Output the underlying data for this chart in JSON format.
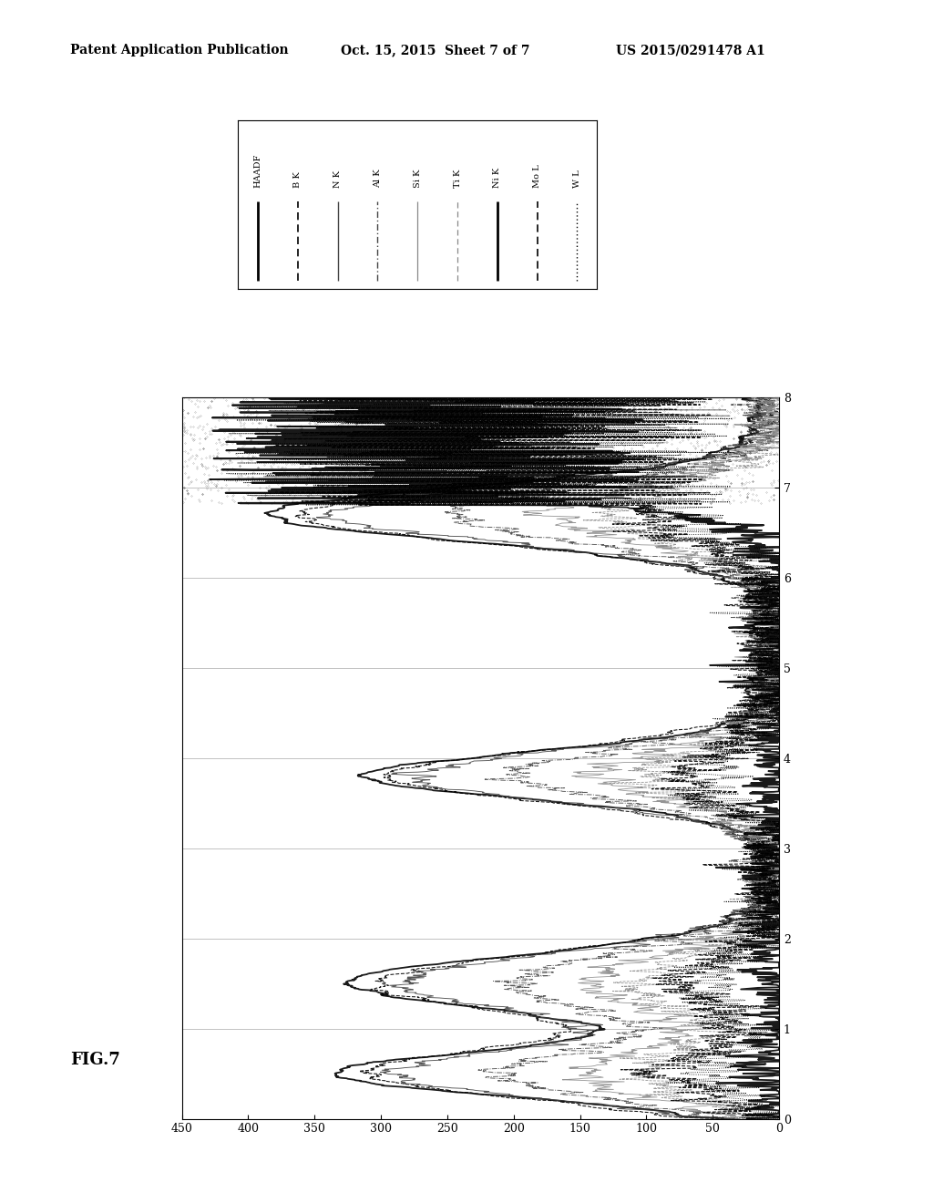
{
  "header_left": "Patent Application Publication",
  "header_mid": "Oct. 15, 2015  Sheet 7 of 7",
  "header_right": "US 2015/0291478 A1",
  "fig_label": "FIG.7",
  "legend_entries": [
    {
      "label": "HAADF",
      "linestyle": "solid",
      "lw": 2.0,
      "color": "#000000"
    },
    {
      "label": "B K",
      "linestyle": "dashed",
      "lw": 1.2,
      "color": "#000000"
    },
    {
      "label": "N K",
      "linestyle": "solid",
      "lw": 1.0,
      "color": "#444444"
    },
    {
      "label": "Al K",
      "linestyle": "dashdot",
      "lw": 1.0,
      "color": "#444444"
    },
    {
      "label": "Si K",
      "linestyle": "solid",
      "lw": 0.9,
      "color": "#888888"
    },
    {
      "label": "Ti K",
      "linestyle": "dashed",
      "lw": 0.9,
      "color": "#888888"
    },
    {
      "label": "Ni K",
      "linestyle": "solid",
      "lw": 2.0,
      "color": "#000000"
    },
    {
      "label": "Mo L",
      "linestyle": "dashed",
      "lw": 1.2,
      "color": "#000000"
    },
    {
      "label": "W L",
      "linestyle": "dotted",
      "lw": 1.0,
      "color": "#000000"
    }
  ],
  "xmin": 0,
  "xmax": 8,
  "ymin": 0,
  "ymax": 450,
  "xticks": [
    0,
    1,
    2,
    3,
    4,
    5,
    6,
    7,
    8
  ],
  "yticks": [
    0,
    50,
    100,
    150,
    200,
    250,
    300,
    350,
    400,
    450
  ],
  "hlines": [
    1,
    2,
    3,
    4,
    5,
    6,
    7
  ],
  "background_color": "#ffffff"
}
